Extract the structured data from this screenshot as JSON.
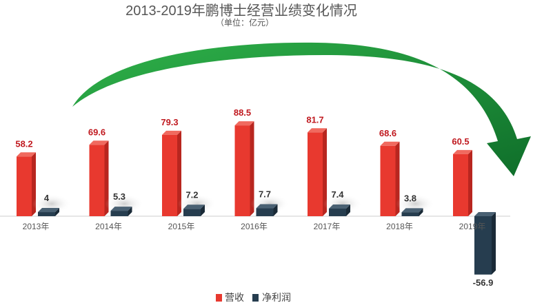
{
  "chart_data": {
    "type": "bar",
    "title": "2013-2019年鹏博士经营业绩变化情况",
    "subtitle": "（单位：亿元）",
    "categories": [
      "2013年",
      "2014年",
      "2015年",
      "2016年",
      "2017年",
      "2018年",
      "2019年"
    ],
    "series": [
      {
        "name": "营收",
        "color": "#e8392f",
        "values": [
          58.2,
          69.6,
          79.3,
          88.5,
          81.7,
          68.6,
          60.5
        ]
      },
      {
        "name": "净利润",
        "color": "#263d4f",
        "values": [
          4,
          5.3,
          7.2,
          7.7,
          7.4,
          3.8,
          -56.9
        ]
      }
    ],
    "value_labels": {
      "revenue": [
        "58.2",
        "69.6",
        "79.3",
        "88.5",
        "81.7",
        "68.6",
        "60.5"
      ],
      "net_profit": [
        "4",
        "5.3",
        "7.2",
        "7.7",
        "7.4",
        "3.8",
        "-56.9"
      ]
    },
    "legend_placement": "bottom",
    "grid": false,
    "annotation": "green-curved-arrow",
    "arrow_color": "#1e9a3c"
  }
}
